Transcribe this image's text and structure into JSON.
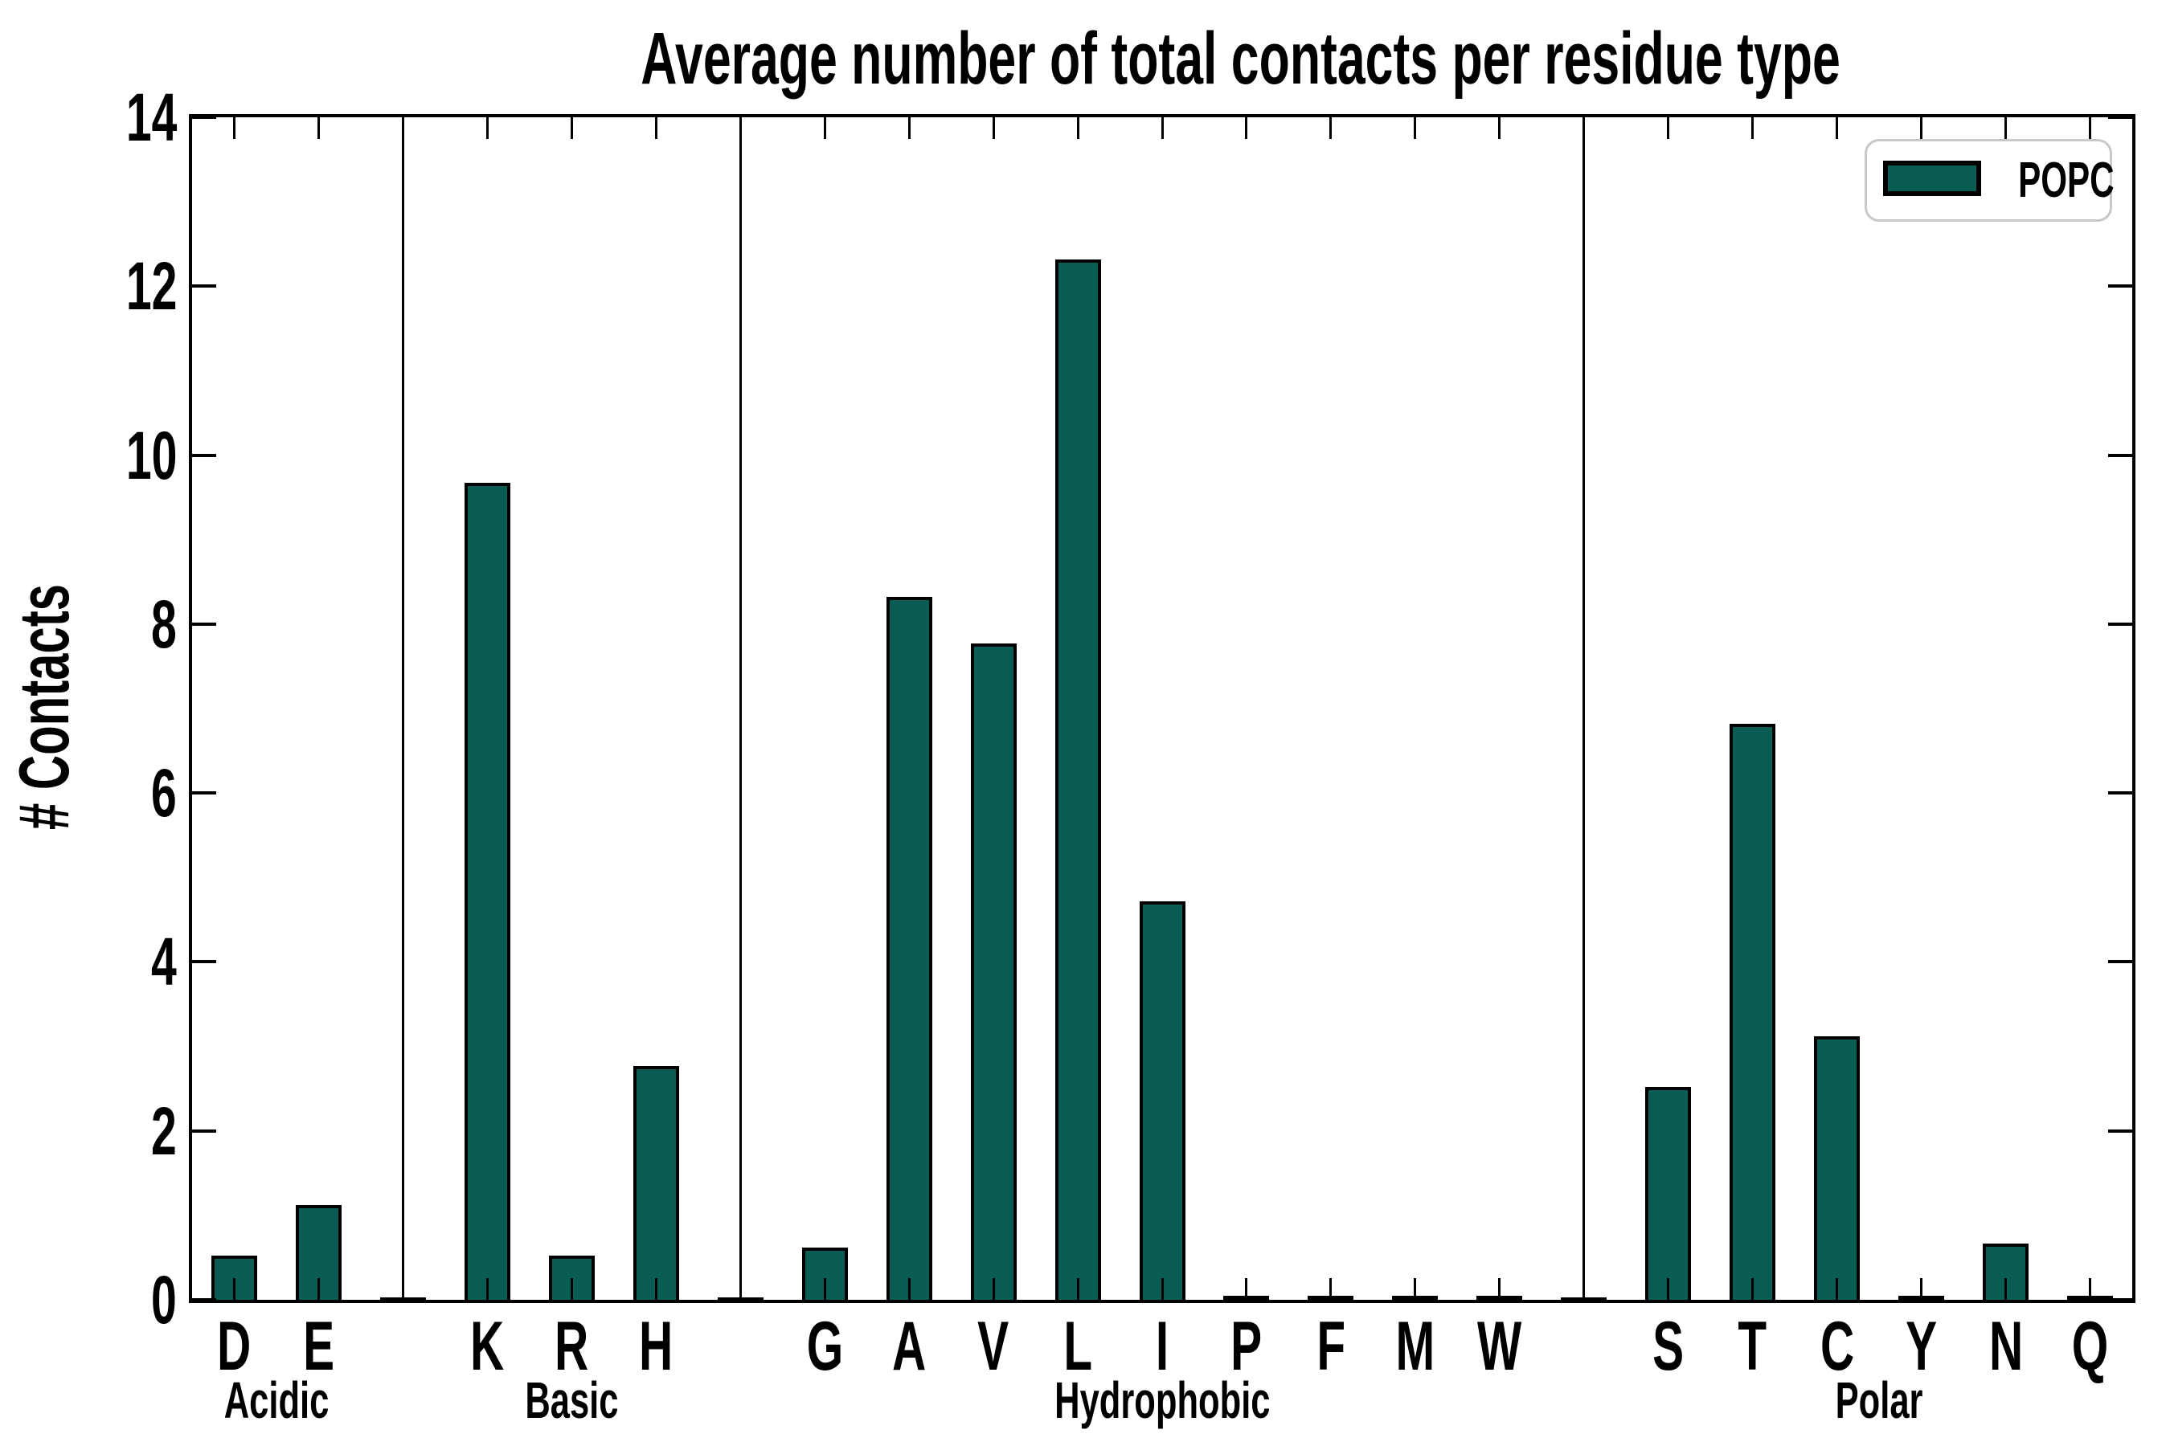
{
  "title": "Average number of total contacts per residue type",
  "ylabel": "# Contacts",
  "legend": {
    "label": "POPC",
    "position": "upper right"
  },
  "colors": {
    "bar_fill": "#0a5d53",
    "bar_edge": "#000000",
    "axis": "#000000",
    "legend_border": "#c8c8c8",
    "background": "#ffffff"
  },
  "yaxis": {
    "min": 0,
    "max": 14,
    "tick_step": 2,
    "tick_values": [
      0,
      2,
      4,
      6,
      8,
      10,
      12,
      14
    ],
    "tick_labels": [
      "0",
      "2",
      "4",
      "6",
      "8",
      "10",
      "12",
      "14"
    ]
  },
  "chart_data": {
    "type": "bar",
    "title": "Average number of total contacts per residue type",
    "xlabel": "",
    "ylabel": "# Contacts",
    "ylim": [
      0,
      14
    ],
    "grid": false,
    "legend_position": "upper right",
    "series_name": "POPC",
    "categories": [
      "D",
      "E",
      "K",
      "R",
      "H",
      "G",
      "A",
      "V",
      "L",
      "I",
      "P",
      "F",
      "M",
      "W",
      "S",
      "T",
      "C",
      "Y",
      "N",
      "Q"
    ],
    "values": [
      0.5,
      1.1,
      9.65,
      0.5,
      2.75,
      0.6,
      8.3,
      7.75,
      12.3,
      4.7,
      0.02,
      0.02,
      0.02,
      0.02,
      2.5,
      6.8,
      3.1,
      0.02,
      0.65,
      0.02
    ],
    "groups": [
      {
        "label": "Acidic",
        "residues": [
          "D",
          "E"
        ],
        "values": [
          0.5,
          1.1
        ]
      },
      {
        "label": "Basic",
        "residues": [
          "K",
          "R",
          "H"
        ],
        "values": [
          9.65,
          0.5,
          2.75
        ]
      },
      {
        "label": "Hydrophobic",
        "residues": [
          "G",
          "A",
          "V",
          "L",
          "I",
          "P",
          "F",
          "M",
          "W"
        ],
        "values": [
          0.6,
          8.3,
          7.75,
          12.3,
          4.7,
          0.02,
          0.02,
          0.02,
          0.02
        ]
      },
      {
        "label": "Polar",
        "residues": [
          "S",
          "T",
          "C",
          "Y",
          "N",
          "Q"
        ],
        "values": [
          2.5,
          6.8,
          3.1,
          0.02,
          0.65,
          0.02
        ]
      }
    ]
  }
}
